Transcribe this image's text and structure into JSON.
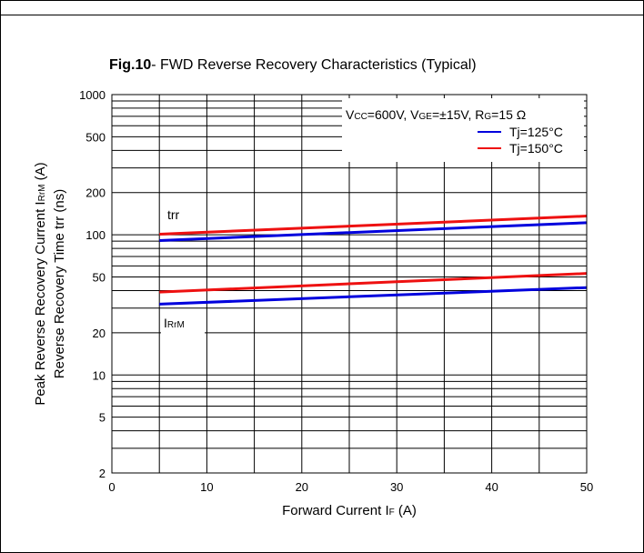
{
  "chart_data": {
    "type": "line",
    "title_bold": "Fig.10",
    "title_rest": "- FWD Reverse Recovery Characteristics (Typical)",
    "xlabel_main": "Forward Current I",
    "xlabel_sub": "F",
    "xlabel_unit": "  (A)",
    "ylabel_line1": "Peak Reverse Recovery Current  I",
    "ylabel_line1_sub": "RrM",
    "ylabel_line1_unit": " (A)",
    "ylabel_line2": "Reverse Recovery Time trr  (ns)",
    "xlim": [
      0,
      50
    ],
    "ylim": [
      2,
      1000
    ],
    "yscale": "log",
    "xticks": [
      0,
      10,
      20,
      30,
      40,
      50
    ],
    "yticks": [
      2,
      5,
      10,
      20,
      50,
      100,
      200,
      500,
      1000
    ],
    "grid": true,
    "conditions": {
      "v1": "V",
      "v1_sub": "CC",
      "v1_val": "=600V, ",
      "v2": "V",
      "v2_sub": "GE",
      "v2_val": "=±15V, ",
      "v3": "R",
      "v3_sub": "G",
      "v3_val": "=15 Ω"
    },
    "legend_position": "top-right",
    "legend": [
      {
        "label": "Tj=125°C",
        "color": "#0000dd"
      },
      {
        "label": "Tj=150°C",
        "color": "#ee1111"
      }
    ],
    "annotations": {
      "trr": "trr",
      "irm_main": "I",
      "irm_sub": "RrM"
    },
    "series": [
      {
        "group": "trr",
        "tj": "125°C",
        "color": "#0000dd",
        "x": [
          5,
          50
        ],
        "y": [
          91,
          122
        ]
      },
      {
        "group": "trr",
        "tj": "150°C",
        "color": "#ee1111",
        "x": [
          5,
          50
        ],
        "y": [
          101,
          136
        ]
      },
      {
        "group": "IrrM",
        "tj": "125°C",
        "color": "#0000dd",
        "x": [
          5,
          50
        ],
        "y": [
          32,
          42
        ]
      },
      {
        "group": "IrrM",
        "tj": "150°C",
        "color": "#ee1111",
        "x": [
          5,
          50
        ],
        "y": [
          39,
          53
        ]
      }
    ]
  }
}
